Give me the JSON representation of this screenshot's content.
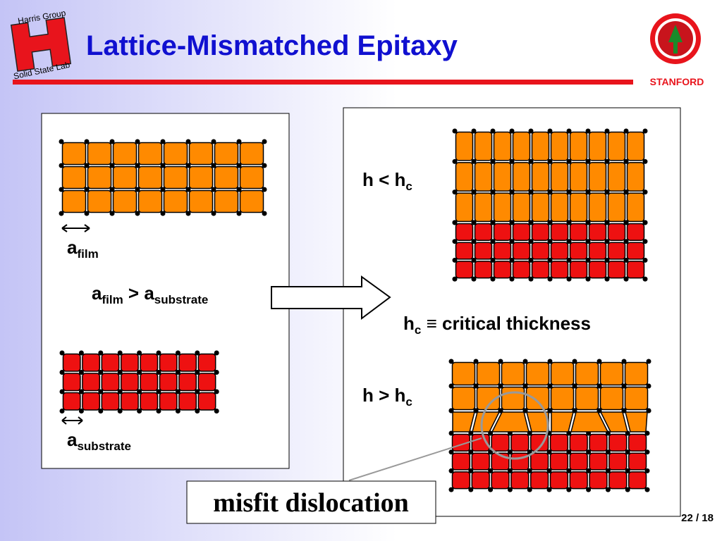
{
  "header": {
    "logo_top": "Harris Group",
    "logo_bottom": "Solid State Lab",
    "title": "Lattice-Mismatched Epitaxy",
    "institution": "STANFORD"
  },
  "left_panel": {
    "film_label": {
      "base": "a",
      "sub": "film"
    },
    "comparison": {
      "left_base": "a",
      "left_sub": "film",
      "operator": " > a",
      "right_sub": "substrate"
    },
    "substrate_label": {
      "base": "a",
      "sub": "substrate"
    }
  },
  "right_panel": {
    "thin_case": {
      "base": "h < h",
      "sub": "c"
    },
    "definition": {
      "base": "h",
      "sub": "c",
      "text": " ≡ critical thickness"
    },
    "thick_case": {
      "base": "h > h",
      "sub": "c"
    }
  },
  "callout": "misfit dislocation",
  "page_number": "22 / 18"
}
